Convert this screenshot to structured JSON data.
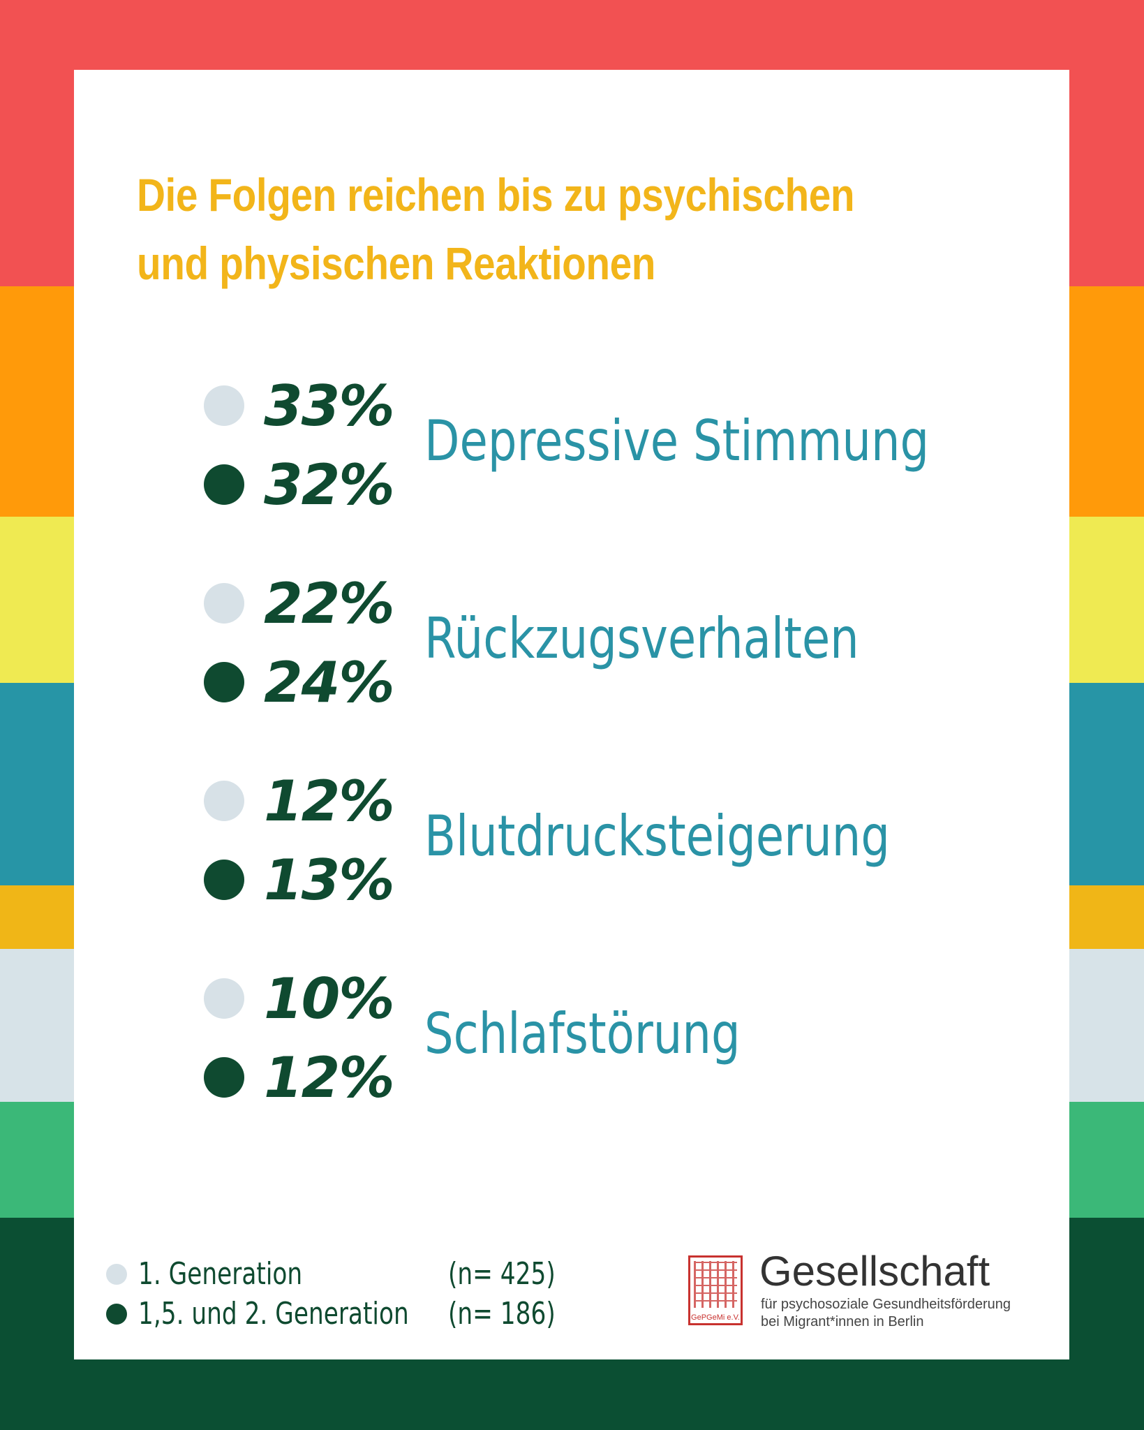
{
  "stripe_colors": [
    "#f25152",
    "#ff9a0a",
    "#efea52",
    "#2795a6",
    "#f0b617",
    "#d7e3e8",
    "#3bb878",
    "#0b4f33"
  ],
  "colors": {
    "title": "#f2b51a",
    "category_label": "#2a93a6",
    "percent_value": "#0f4a30",
    "series_first_generation": "#d7e1e7",
    "series_second_generation": "#0f4a30"
  },
  "title": "Die Folgen reichen bis zu psychischen und physischen Reaktionen",
  "chart_data": {
    "type": "table",
    "title": "Die Folgen reichen bis zu psychischen und physischen Reaktionen",
    "categories": [
      "Depressive Stimmung",
      "Rückzugsverhalten",
      "Blutdrucksteigerung",
      "Schlafstörung"
    ],
    "series": [
      {
        "name": "1. Generation",
        "n": "(n= 425)",
        "values": [
          33,
          22,
          12,
          10
        ],
        "labels": [
          "33%",
          "22%",
          "12%",
          "10%"
        ],
        "color": "#d7e1e7"
      },
      {
        "name": "1,5. und 2. Generation",
        "n": "(n= 186)",
        "values": [
          32,
          24,
          13,
          12
        ],
        "labels": [
          "32%",
          "24%",
          "13%",
          "12%"
        ],
        "color": "#0f4a30"
      }
    ],
    "unit": "%"
  },
  "legend": {
    "items": [
      {
        "label": "1. Generation",
        "n": "(n= 425)",
        "color": "#d7e1e7"
      },
      {
        "label": "1,5. und 2. Generation",
        "n": "(n= 186)",
        "color": "#0f4a30"
      }
    ]
  },
  "logo": {
    "name": "Gesellschaft",
    "subtitle_line1": "für psychosoziale Gesundheitsförderung",
    "subtitle_line2": "bei Migrant*innen in Berlin",
    "seal_text": "GePGeMi e.V.",
    "seal_color": "#c8322f"
  }
}
